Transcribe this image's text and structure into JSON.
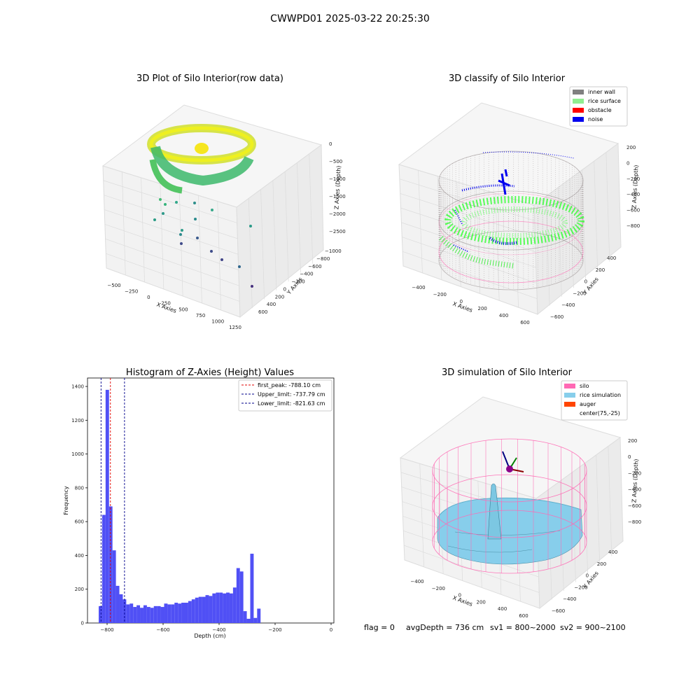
{
  "suptitle": "CWWPD01 2025-03-22 20:25:30",
  "colors": {
    "hist_bar": "#5050f5",
    "peak_line": "#e00000",
    "limit_line": "#00008b",
    "silo_wall": "#ff69b4",
    "rice": "#87ceeb",
    "auger": "#ff4500",
    "inner_wall": "#808080",
    "rice_surface": "#90ee90",
    "obstacle": "#ff0000",
    "noise": "#0000ee"
  },
  "panels": {
    "raw": {
      "title": "3D Plot of Silo Interior(row data)",
      "xlabel": "X Axies",
      "ylabel": "Y Axies",
      "zlabel": "Z Axies (Depth)",
      "xticks": [
        "−500",
        "−250",
        "0",
        "250",
        "500",
        "750",
        "1000",
        "1250"
      ],
      "yticks": [
        "600",
        "400",
        "200",
        "0",
        "−200",
        "−400",
        "−600",
        "−800",
        "−1000"
      ],
      "zticks": [
        "0",
        "−500",
        "−1000",
        "−1500",
        "−2000",
        "−2500"
      ]
    },
    "classify": {
      "title": "3D classify of Silo Interior",
      "xlabel": "X Axies",
      "ylabel": "Y Axies",
      "zlabel": "Z Axies (Depth)",
      "xticks": [
        "−400",
        "−200",
        "0",
        "200",
        "400",
        "600"
      ],
      "yticks": [
        "400",
        "200",
        "0",
        "−200",
        "−400",
        "−600"
      ],
      "zticks": [
        "200",
        "0",
        "−200",
        "−400",
        "−600",
        "−800"
      ],
      "legend": [
        {
          "label": "inner wall",
          "color": "#808080"
        },
        {
          "label": "rice surface",
          "color": "#90ee90"
        },
        {
          "label": "obstacle",
          "color": "#ff0000"
        },
        {
          "label": "noise",
          "color": "#0000ee"
        }
      ]
    },
    "simulation": {
      "title": "3D simulation of Silo Interior",
      "xlabel": "X Axies",
      "ylabel": "Y Axies",
      "zlabel": "Z Axies (Depth)",
      "xticks": [
        "−400",
        "−200",
        "0",
        "200",
        "400",
        "600"
      ],
      "yticks": [
        "400",
        "200",
        "0",
        "−200",
        "−400",
        "−600"
      ],
      "zticks": [
        "200",
        "0",
        "−200",
        "−400",
        "−600",
        "−800"
      ],
      "legend": [
        {
          "label": "silo",
          "color": "#ff69b4"
        },
        {
          "label": "rice simulation",
          "color": "#87ceeb"
        },
        {
          "label": "auger",
          "color": "#ff4500"
        },
        {
          "label": "center(75,-25)",
          "color": "none"
        }
      ]
    }
  },
  "chart_data": [
    {
      "type": "bar",
      "title": "Histogram of Z-Axies (Height) Values",
      "xlabel": "Depth (cm)",
      "ylabel": "Frequency",
      "xlim": [
        -870,
        10
      ],
      "ylim": [
        0,
        1450
      ],
      "xticks": [
        -800,
        -600,
        -400,
        -200,
        0
      ],
      "yticks": [
        0,
        200,
        400,
        600,
        800,
        1000,
        1200,
        1400
      ],
      "bin_edges_start": -830,
      "bin_width": 12.3,
      "values": [
        100,
        640,
        1380,
        690,
        430,
        220,
        170,
        140,
        110,
        115,
        95,
        105,
        90,
        105,
        95,
        90,
        100,
        100,
        95,
        115,
        110,
        110,
        120,
        115,
        120,
        120,
        130,
        140,
        150,
        155,
        155,
        165,
        160,
        175,
        180,
        180,
        175,
        180,
        175,
        210,
        325,
        305,
        70,
        25,
        410,
        30,
        85
      ],
      "vlines": [
        {
          "label": "first_peak: -788.10 cm",
          "x": -788.1,
          "color": "#e00000"
        },
        {
          "label": "Upper_limit: -737.79 cm",
          "x": -737.79,
          "color": "#00008b"
        },
        {
          "label": "Lower_limit: -821.63 cm",
          "x": -821.63,
          "color": "#00008b"
        }
      ]
    }
  ],
  "footer": {
    "flag": "flag = 0",
    "avg_depth": "avgDepth = 736 cm",
    "sv1": "sv1 = 800~2000",
    "sv2": "sv2 = 900~2100"
  }
}
